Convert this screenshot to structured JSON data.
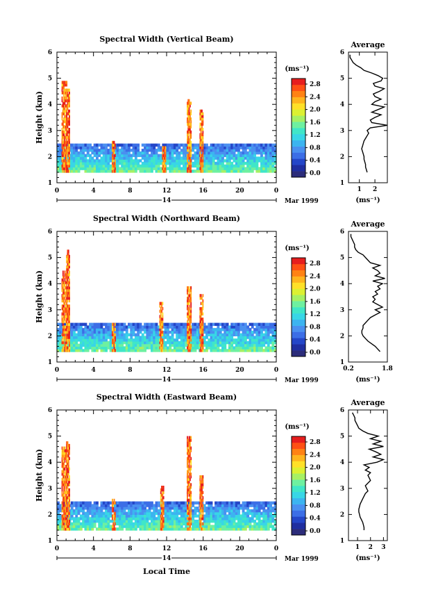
{
  "figure": {
    "xlabel": "Local Time",
    "date_label": "Mar 1999",
    "day_label": "14"
  },
  "colorbar": {
    "unit_label": "(ms⁻¹)",
    "ticks": [
      "2.8",
      "2.4",
      "2.0",
      "1.6",
      "1.2",
      "0.8",
      "0.4",
      "0.0"
    ],
    "colors": [
      "#2c2c7a",
      "#1f2ea0",
      "#2446c8",
      "#3c6ee6",
      "#4a90f0",
      "#3cb4f0",
      "#38d6e6",
      "#40e6c8",
      "#6ef0a0",
      "#a6f064",
      "#dcf032",
      "#ffe028",
      "#ffb41e",
      "#ff8214",
      "#ff5014",
      "#e61e1e"
    ]
  },
  "chart_data": [
    {
      "type": "heatmap",
      "title": "Spectral Width (Vertical Beam)",
      "ylabel": "Height (km)",
      "xlabel": "",
      "x_ticks": [
        "0",
        "4",
        "8",
        "12",
        "16",
        "20",
        "0"
      ],
      "y_ticks": [
        "1",
        "2",
        "3",
        "4",
        "5",
        "6"
      ],
      "xlim": [
        0,
        24
      ],
      "ylim": [
        1,
        6
      ],
      "layer_top_km": 2.4,
      "profile": {
        "title": "Average",
        "xlabel": "(ms⁻¹)",
        "x_ticks": [
          "1",
          "2"
        ],
        "xlim": [
          0.3,
          2.8
        ],
        "heights": [
          1.4,
          1.5,
          1.6,
          1.7,
          1.8,
          1.9,
          2.0,
          2.1,
          2.2,
          2.3,
          2.4,
          2.5,
          2.6,
          2.7,
          2.8,
          2.9,
          3.0,
          3.1,
          3.2,
          3.3,
          3.4,
          3.5,
          3.6,
          3.7,
          3.8,
          3.9,
          4.0,
          4.1,
          4.2,
          4.3,
          4.4,
          4.5,
          4.6,
          4.7,
          4.8,
          4.9,
          5.0,
          5.1,
          5.2,
          5.3,
          5.4,
          5.5,
          5.6,
          5.7,
          5.8,
          5.9
        ],
        "values": [
          1.5,
          1.45,
          1.4,
          1.4,
          1.35,
          1.3,
          1.3,
          1.25,
          1.2,
          1.15,
          1.2,
          1.25,
          1.3,
          1.4,
          1.5,
          1.6,
          1.5,
          1.7,
          2.9,
          1.8,
          1.7,
          2.0,
          2.4,
          1.8,
          2.2,
          2.6,
          1.8,
          2.0,
          2.4,
          2.0,
          1.9,
          2.3,
          2.6,
          2.0,
          1.9,
          2.4,
          2.5,
          2.2,
          1.8,
          1.3,
          1.1,
          0.8,
          0.6,
          0.5,
          0.4,
          0.4
        ]
      }
    },
    {
      "type": "heatmap",
      "title": "Spectral Width (Northward Beam)",
      "ylabel": "Height (km)",
      "xlabel": "",
      "x_ticks": [
        "0",
        "4",
        "8",
        "12",
        "16",
        "20",
        "0"
      ],
      "y_ticks": [
        "1",
        "2",
        "3",
        "4",
        "5",
        "6"
      ],
      "xlim": [
        0,
        24
      ],
      "ylim": [
        1,
        6
      ],
      "layer_top_km": 2.4,
      "profile": {
        "title": "Average",
        "xlabel": "(ms⁻¹)",
        "x_ticks": [
          "0.2",
          "1.8"
        ],
        "xlim": [
          0.2,
          1.8
        ],
        "heights": [
          1.4,
          1.5,
          1.6,
          1.7,
          1.8,
          1.9,
          2.0,
          2.1,
          2.2,
          2.3,
          2.4,
          2.5,
          2.6,
          2.7,
          2.8,
          2.9,
          3.0,
          3.1,
          3.2,
          3.3,
          3.4,
          3.5,
          3.6,
          3.7,
          3.8,
          3.9,
          4.0,
          4.1,
          4.2,
          4.3,
          4.4,
          4.5,
          4.6,
          4.7,
          4.8,
          4.9,
          5.0,
          5.1,
          5.2,
          5.3,
          5.4,
          5.5,
          5.6,
          5.7,
          5.8,
          5.9
        ],
        "values": [
          1.5,
          1.4,
          1.3,
          1.15,
          1.0,
          0.9,
          0.8,
          0.75,
          0.75,
          0.8,
          0.8,
          0.9,
          1.0,
          1.1,
          1.3,
          1.5,
          1.3,
          1.6,
          1.4,
          1.2,
          1.3,
          1.2,
          1.4,
          1.3,
          1.5,
          1.4,
          1.6,
          1.2,
          1.7,
          1.3,
          1.5,
          1.4,
          1.2,
          1.5,
          1.1,
          1.0,
          0.9,
          0.8,
          0.6,
          0.5,
          0.45,
          0.45,
          0.4,
          0.35,
          0.3,
          0.3
        ]
      }
    },
    {
      "type": "heatmap",
      "title": "Spectral Width (Eastward Beam)",
      "ylabel": "Height (km)",
      "xlabel": "",
      "x_ticks": [
        "0",
        "4",
        "8",
        "12",
        "16",
        "20",
        "0"
      ],
      "y_ticks": [
        "1",
        "2",
        "3",
        "4",
        "5",
        "6"
      ],
      "xlim": [
        0,
        24
      ],
      "ylim": [
        1,
        6
      ],
      "layer_top_km": 2.4,
      "profile": {
        "title": "Average",
        "xlabel": "(ms⁻¹)",
        "x_ticks": [
          "1",
          "2",
          "3"
        ],
        "xlim": [
          0.3,
          3.3
        ],
        "heights": [
          1.4,
          1.5,
          1.6,
          1.7,
          1.8,
          1.9,
          2.0,
          2.1,
          2.2,
          2.3,
          2.4,
          2.5,
          2.6,
          2.7,
          2.8,
          2.9,
          3.0,
          3.1,
          3.2,
          3.3,
          3.4,
          3.5,
          3.6,
          3.7,
          3.8,
          3.9,
          4.0,
          4.1,
          4.2,
          4.3,
          4.4,
          4.5,
          4.6,
          4.7,
          4.8,
          4.9,
          5.0,
          5.1,
          5.2,
          5.3,
          5.4,
          5.5,
          5.6,
          5.7,
          5.8,
          5.9
        ],
        "values": [
          1.5,
          1.5,
          1.45,
          1.4,
          1.3,
          1.2,
          1.15,
          1.1,
          1.1,
          1.15,
          1.2,
          1.3,
          1.4,
          1.5,
          1.6,
          1.8,
          1.7,
          1.6,
          1.8,
          2.0,
          1.9,
          1.8,
          2.0,
          1.6,
          1.9,
          1.5,
          2.5,
          3.0,
          2.2,
          2.8,
          2.4,
          1.9,
          3.0,
          2.2,
          2.8,
          2.0,
          2.6,
          1.8,
          1.4,
          1.1,
          1.0,
          0.9,
          0.8,
          0.8,
          0.7,
          0.6
        ]
      }
    }
  ]
}
